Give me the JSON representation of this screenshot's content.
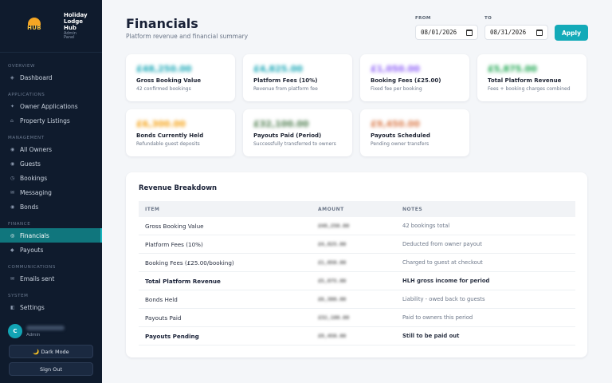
{
  "brand": {
    "name": "Holiday Lodge Hub",
    "sub": "Admin Panel",
    "logo_text": "HUB"
  },
  "sidebar": {
    "sections": {
      "overview": "OVERVIEW",
      "applications": "APPLICATIONS",
      "management": "MANAGEMENT",
      "finance": "FINANCE",
      "communications": "COMMUNICATIONS",
      "system": "SYSTEM"
    },
    "items": [
      {
        "label": "Dashboard",
        "icon": "grid-icon"
      },
      {
        "label": "Owner Applications",
        "icon": "sparkle-icon"
      },
      {
        "label": "Property Listings",
        "icon": "home-icon"
      },
      {
        "label": "All Owners",
        "icon": "users-icon"
      },
      {
        "label": "Guests",
        "icon": "guest-icon"
      },
      {
        "label": "Bookings",
        "icon": "clock-icon"
      },
      {
        "label": "Messaging",
        "icon": "mail-icon"
      },
      {
        "label": "Bonds",
        "icon": "bond-icon"
      },
      {
        "label": "Financials",
        "icon": "target-icon"
      },
      {
        "label": "Payouts",
        "icon": "diamond-icon"
      },
      {
        "label": "Emails sent",
        "icon": "envelope-icon"
      },
      {
        "label": "Settings",
        "icon": "settings-icon"
      }
    ],
    "active": "Financials",
    "user": {
      "initial": "C",
      "role": "Admin"
    },
    "dark_mode_label": "🌙 Dark Mode",
    "signout_label": "Sign Out"
  },
  "header": {
    "title": "Financials",
    "subtitle": "Platform revenue and financial summary"
  },
  "filters": {
    "from_label": "FROM",
    "from_value": "08/01/2026",
    "to_label": "TO",
    "to_value": "08/31/2026",
    "apply_label": "Apply"
  },
  "cards": [
    {
      "value": "£48,250.00",
      "label": "Gross Booking Value",
      "sub": "42 confirmed bookings",
      "color": "#12a4b4"
    },
    {
      "value": "£4,825.00",
      "label": "Platform Fees (10%)",
      "sub": "Revenue from platform fee",
      "color": "#12a4b4"
    },
    {
      "value": "£1,050.00",
      "label": "Booking Fees (£25.00)",
      "sub": "Fixed fee per booking",
      "color": "#8b5cf6"
    },
    {
      "value": "£5,875.00",
      "label": "Total Platform Revenue",
      "sub": "Fees + booking charges combined",
      "color": "#16a34a"
    },
    {
      "value": "£6,300.00",
      "label": "Bonds Currently Held",
      "sub": "Refundable guest deposits",
      "color": "#f59e0b"
    },
    {
      "value": "£32,100.00",
      "label": "Payouts Paid (Period)",
      "sub": "Successfully transferred to owners",
      "color": "#4b7a4b"
    },
    {
      "value": "£9,450.00",
      "label": "Payouts Scheduled",
      "sub": "Pending owner transfers",
      "color": "#d97745"
    }
  ],
  "breakdown": {
    "title": "Revenue Breakdown",
    "columns": [
      "ITEM",
      "AMOUNT",
      "NOTES"
    ],
    "rows": [
      {
        "item": "Gross Booking Value",
        "amount": "£48,250.00",
        "notes": "42 bookings total",
        "bold": false
      },
      {
        "item": "Platform Fees (10%)",
        "amount": "£4,825.00",
        "notes": "Deducted from owner payout",
        "bold": false
      },
      {
        "item": "Booking Fees (£25.00/booking)",
        "amount": "£1,050.00",
        "notes": "Charged to guest at checkout",
        "bold": false
      },
      {
        "item": "Total Platform Revenue",
        "amount": "£5,875.00",
        "notes": "HLH gross income for period",
        "bold": true
      },
      {
        "item": "Bonds Held",
        "amount": "£6,300.00",
        "notes": "Liability - owed back to guests",
        "bold": false
      },
      {
        "item": "Payouts Paid",
        "amount": "£32,100.00",
        "notes": "Paid to owners this period",
        "bold": false
      },
      {
        "item": "Payouts Pending",
        "amount": "£9,450.00",
        "notes": "Still to be paid out",
        "bold": true
      }
    ]
  }
}
